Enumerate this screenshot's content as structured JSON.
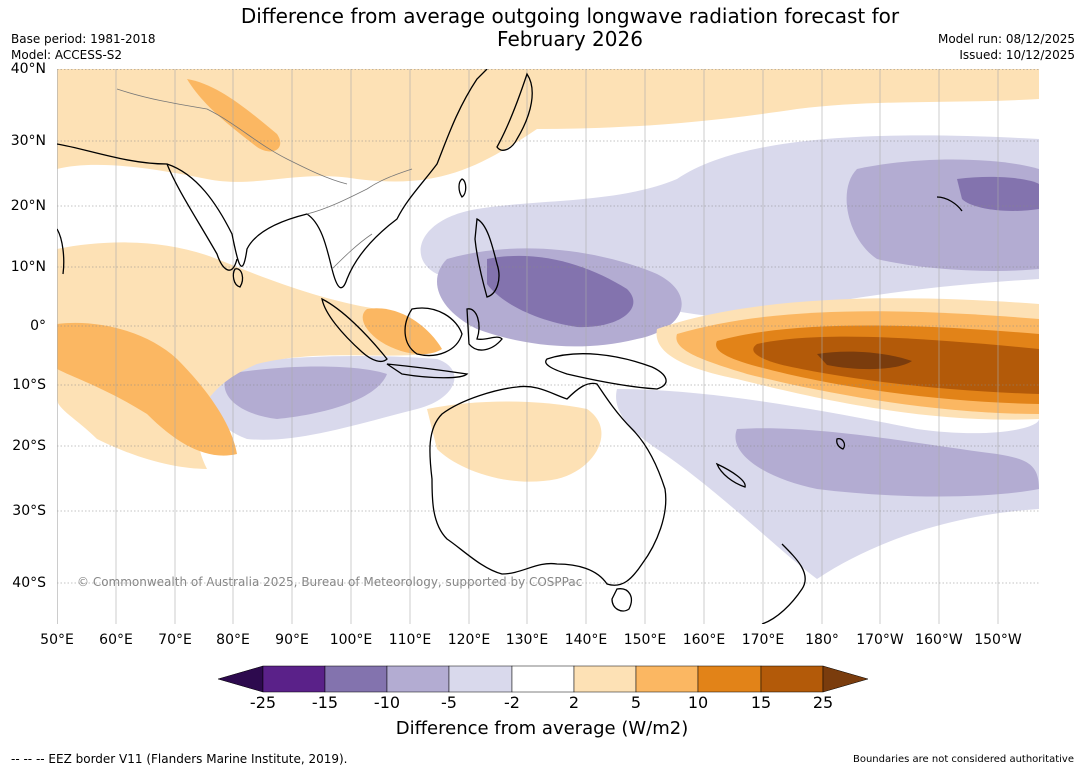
{
  "header": {
    "title_line1": "Difference from average outgoing longwave radiation forecast for",
    "title_line2": "February 2026",
    "base_period": "Base period: 1981-2018",
    "model": "Model: ACCESS-S2",
    "model_run": "Model run: 08/12/2025",
    "issued": "Issued: 10/12/2025"
  },
  "map": {
    "copyright": "© Commonwealth of Australia 2025, Bureau of Meteorology, supported by COSPPac",
    "lat_labels": [
      "40°N",
      "30°N",
      "20°N",
      "10°N",
      "0°",
      "10°S",
      "20°S",
      "30°S",
      "40°S"
    ],
    "lon_labels": [
      "50°E",
      "60°E",
      "70°E",
      "80°E",
      "90°E",
      "100°E",
      "110°E",
      "120°E",
      "130°E",
      "140°E",
      "150°E",
      "160°E",
      "170°E",
      "180°",
      "170°W",
      "160°W",
      "150°W"
    ]
  },
  "colorbar": {
    "title": "Difference from average (W/m2)",
    "tick_labels": [
      "-25",
      "-15",
      "-10",
      "-5",
      "-2",
      "2",
      "5",
      "10",
      "15",
      "25"
    ],
    "colors": {
      "lt_neg25": "#2d0a4e",
      "neg25_neg15": "#5a2189",
      "neg15_neg10": "#8373ae",
      "neg10_neg5": "#b3acd2",
      "neg5_neg2": "#d9d9ec",
      "neg2_2": "#ffffff",
      "pos2_5": "#fde1b5",
      "pos5_10": "#fbb762",
      "pos10_15": "#e28318",
      "pos15_25": "#b35a09",
      "gt_25": "#7a3c0d"
    }
  },
  "footer": {
    "eez_note": "--  --  -- EEZ border V11 (Flanders Marine Institute, 2019).",
    "disclaimer": "Boundaries are not considered authoritative"
  }
}
